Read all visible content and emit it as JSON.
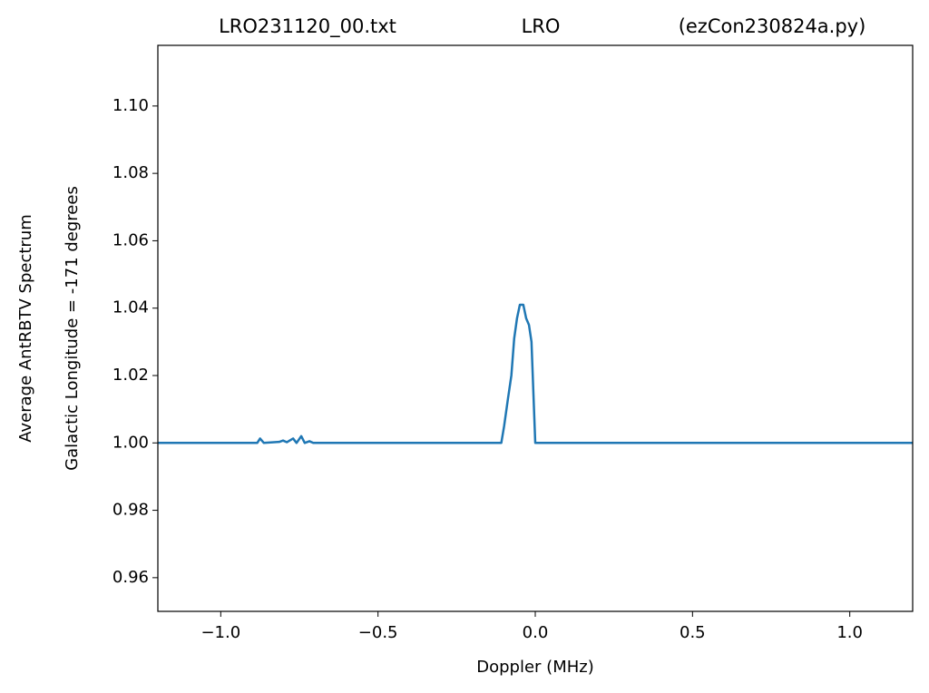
{
  "chart_data": {
    "type": "line",
    "title": [
      "LRO231120_00.txt",
      "LRO",
      "(ezCon230824a.py)"
    ],
    "xlabel": "Doppler (MHz)",
    "ylabel": [
      "Average AntRBTV Spectrum",
      "Galactic Longitude = -171 degrees"
    ],
    "x": [
      -1.2,
      -0.884,
      -0.875,
      -0.863,
      -0.814,
      -0.802,
      -0.79,
      -0.77,
      -0.759,
      -0.744,
      -0.733,
      -0.718,
      -0.706,
      -0.108,
      -0.099,
      -0.087,
      -0.076,
      -0.067,
      -0.058,
      -0.049,
      -0.038,
      -0.029,
      -0.02,
      -0.012,
      0.0,
      1.2
    ],
    "series": [
      {
        "name": "spectrum",
        "color": "#1f77b4",
        "values": [
          1.0,
          1.0,
          1.0013,
          1.0,
          1.0003,
          1.0007,
          1.0002,
          1.0013,
          1.0,
          1.002,
          1.0,
          1.0005,
          1.0,
          1.0,
          1.005,
          1.013,
          1.02,
          1.031,
          1.037,
          1.041,
          1.041,
          1.037,
          1.035,
          1.03,
          1.0,
          1.0
        ]
      }
    ],
    "xlim": [
      -1.2,
      1.2
    ],
    "ylim": [
      0.95,
      1.118
    ],
    "xticks": [
      {
        "value": -1.0,
        "label": "−1.0"
      },
      {
        "value": -0.5,
        "label": "−0.5"
      },
      {
        "value": 0.0,
        "label": "0.0"
      },
      {
        "value": 0.5,
        "label": "0.5"
      },
      {
        "value": 1.0,
        "label": "1.0"
      }
    ],
    "yticks": [
      0.96,
      0.98,
      {
        "value": 1.0,
        "label": "1.00"
      },
      1.02,
      1.04,
      1.06,
      1.08,
      {
        "value": 1.1,
        "label": "1.10"
      }
    ],
    "grid": false
  }
}
